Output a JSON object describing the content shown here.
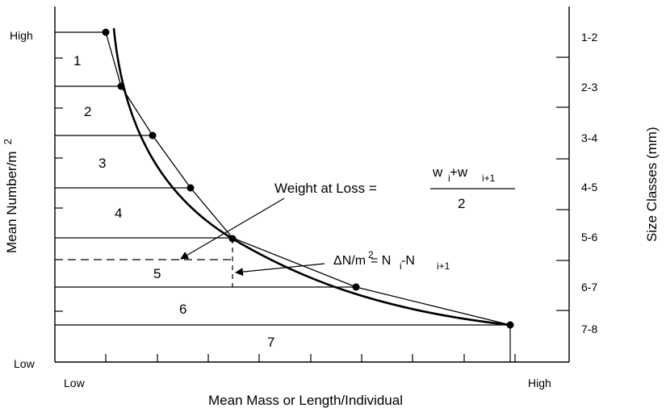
{
  "y_axis": {
    "label": "Mean Number/m",
    "label_superscript": "2",
    "high": "High",
    "low": "Low"
  },
  "x_axis": {
    "label": "Mean Mass or Length/Individual",
    "low": "Low",
    "high": "High"
  },
  "right_axis": {
    "label": "Size Classes (mm)",
    "classes": [
      "1-2",
      "2-3",
      "3-4",
      "4-5",
      "5-6",
      "6-7",
      "7-8"
    ]
  },
  "bands": [
    "1",
    "2",
    "3",
    "4",
    "5",
    "6",
    "7"
  ],
  "annotations": {
    "weight": {
      "text": "Weight at Loss =",
      "num_w1": "w",
      "num_sub1": "i",
      "num_plus": "+w",
      "num_sub2": "i+1",
      "denominator": "2"
    },
    "delta": {
      "lhs": "ΔN/m",
      "lhs_sup": "2",
      "eq": "= N",
      "sub1": "i",
      "minus": "-N",
      "sub2": "i+1"
    }
  }
}
